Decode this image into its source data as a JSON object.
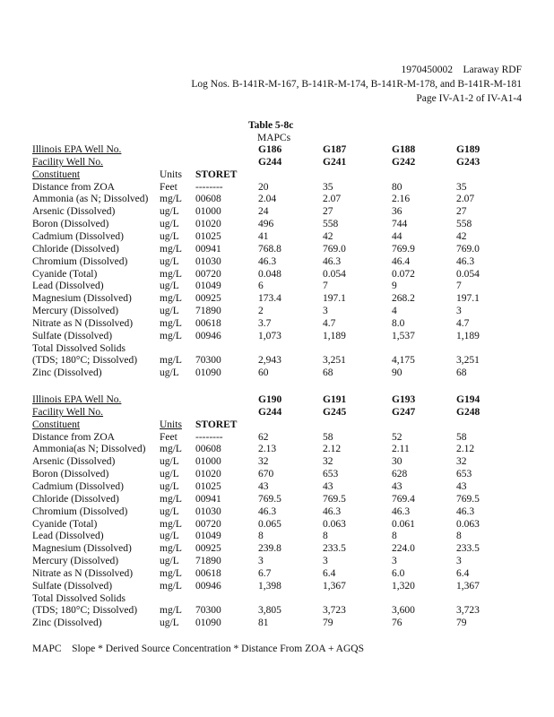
{
  "header": {
    "doc_id": "1970450002    Laraway RDF",
    "log_nos": "Log Nos. B-141R-M-167, B-141R-M-174, B-141R-M-178, and B-141R-M-181",
    "page": "Page IV-A1-2 of IV-A1-4"
  },
  "title": {
    "table": "Table 5-8c",
    "subtitle": "MAPCs"
  },
  "labels": {
    "epa_well": "Illinois EPA Well No.",
    "facility_well": "Facility Well No.",
    "constituent": "Constituent",
    "units": "Units",
    "storet": "STORET"
  },
  "tables": [
    {
      "epa_wells": [
        "G186",
        "G187",
        "G188",
        "G189"
      ],
      "facility_wells": [
        "G244",
        "G241",
        "G242",
        "G243"
      ],
      "rows": [
        {
          "name": "Distance from ZOA",
          "units": "Feet",
          "storet": "--------",
          "values": [
            "20",
            "35",
            "80",
            "35"
          ]
        },
        {
          "name": "Ammonia (as N; Dissolved)",
          "units": "mg/L",
          "storet": "00608",
          "values": [
            "2.04",
            "2.07",
            "2.16",
            "2.07"
          ]
        },
        {
          "name": "Arsenic (Dissolved)",
          "units": "ug/L",
          "storet": "01000",
          "values": [
            "24",
            "27",
            "36",
            "27"
          ]
        },
        {
          "name": "Boron (Dissolved)",
          "units": "ug/L",
          "storet": "01020",
          "values": [
            "496",
            "558",
            "744",
            "558"
          ]
        },
        {
          "name": "Cadmium (Dissolved)",
          "units": "ug/L",
          "storet": "01025",
          "values": [
            "41",
            "42",
            "44",
            "42"
          ]
        },
        {
          "name": "Chloride (Dissolved)",
          "units": "mg/L",
          "storet": "00941",
          "values": [
            "768.8",
            "769.0",
            "769.9",
            "769.0"
          ]
        },
        {
          "name": "Chromium (Dissolved)",
          "units": "ug/L",
          "storet": "01030",
          "values": [
            "46.3",
            "46.3",
            "46.4",
            "46.3"
          ]
        },
        {
          "name": "Cyanide (Total)",
          "units": "mg/L",
          "storet": "00720",
          "values": [
            "0.048",
            "0.054",
            "0.072",
            "0.054"
          ]
        },
        {
          "name": "Lead (Dissolved)",
          "units": "ug/L",
          "storet": "01049",
          "values": [
            "6",
            "7",
            "9",
            "7"
          ]
        },
        {
          "name": "Magnesium (Dissolved)",
          "units": "mg/L",
          "storet": "00925",
          "values": [
            "173.4",
            "197.1",
            "268.2",
            "197.1"
          ]
        },
        {
          "name": "Mercury (Dissolved)",
          "units": "ug/L",
          "storet": "71890",
          "values": [
            "2",
            "3",
            "4",
            "3"
          ]
        },
        {
          "name": "Nitrate as N (Dissolved)",
          "units": "mg/L",
          "storet": "00618",
          "values": [
            "3.7",
            "4.7",
            "8.0",
            "4.7"
          ]
        },
        {
          "name": "Sulfate (Dissolved)",
          "units": "mg/L",
          "storet": "00946",
          "values": [
            "1,073",
            "1,189",
            "1,537",
            "1,189"
          ]
        },
        {
          "name": "Total Dissolved Solids",
          "units": "",
          "storet": "",
          "values": [
            "",
            "",
            "",
            ""
          ]
        },
        {
          "name": "(TDS; 180°C; Dissolved)",
          "units": "mg/L",
          "storet": "70300",
          "values": [
            "2,943",
            "3,251",
            "4,175",
            "3,251"
          ]
        },
        {
          "name": "Zinc (Dissolved)",
          "units": "ug/L",
          "storet": "01090",
          "values": [
            "60",
            "68",
            "90",
            "68"
          ]
        }
      ]
    },
    {
      "epa_wells": [
        "G190",
        "G191",
        "G193",
        "G194"
      ],
      "facility_wells": [
        "G244",
        "G245",
        "G247",
        "G248"
      ],
      "rows": [
        {
          "name": "Distance from ZOA",
          "units": "Feet",
          "storet": "--------",
          "values": [
            "62",
            "58",
            "52",
            "58"
          ]
        },
        {
          "name": "Ammonia(as N; Dissolved)",
          "units": "mg/L",
          "storet": "00608",
          "values": [
            "2.13",
            "2.12",
            "2.11",
            "2.12"
          ]
        },
        {
          "name": "Arsenic  (Dissolved)",
          "units": "ug/L",
          "storet": "01000",
          "values": [
            "32",
            "32",
            "30",
            "32"
          ]
        },
        {
          "name": "Boron (Dissolved)",
          "units": "ug/L",
          "storet": "01020",
          "values": [
            "670",
            "653",
            "628",
            "653"
          ]
        },
        {
          "name": "Cadmium (Dissolved)",
          "units": "ug/L",
          "storet": "01025",
          "values": [
            "43",
            "43",
            "43",
            "43"
          ]
        },
        {
          "name": "Chloride (Dissolved)",
          "units": "mg/L",
          "storet": "00941",
          "values": [
            "769.5",
            "769.5",
            "769.4",
            "769.5"
          ]
        },
        {
          "name": "Chromium (Dissolved)",
          "units": "ug/L",
          "storet": "01030",
          "values": [
            "46.3",
            "46.3",
            "46.3",
            "46.3"
          ]
        },
        {
          "name": "Cyanide (Total)",
          "units": "mg/L",
          "storet": "00720",
          "values": [
            "0.065",
            "0.063",
            "0.061",
            "0.063"
          ]
        },
        {
          "name": "Lead (Dissolved)",
          "units": "ug/L",
          "storet": "01049",
          "values": [
            "8",
            "8",
            "8",
            "8"
          ]
        },
        {
          "name": "Magnesium (Dissolved)",
          "units": "mg/L",
          "storet": "00925",
          "values": [
            "239.8",
            "233.5",
            "224.0",
            "233.5"
          ]
        },
        {
          "name": "Mercury (Dissolved)",
          "units": "ug/L",
          "storet": "71890",
          "values": [
            "3",
            "3",
            "3",
            "3"
          ]
        },
        {
          "name": "Nitrate as N (Dissolved)",
          "units": "mg/L",
          "storet": "00618",
          "values": [
            "6.7",
            "6.4",
            "6.0",
            "6.4"
          ]
        },
        {
          "name": "Sulfate (Dissolved)",
          "units": "mg/L",
          "storet": "00946",
          "values": [
            "1,398",
            "1,367",
            "1,320",
            "1,367"
          ]
        },
        {
          "name": "Total Dissolved Solids",
          "units": "",
          "storet": "",
          "values": [
            "",
            "",
            "",
            ""
          ]
        },
        {
          "name": "(TDS; 180°C; Dissolved)",
          "units": "mg/L",
          "storet": "70300",
          "values": [
            "3,805",
            "3,723",
            "3,600",
            "3,723"
          ]
        },
        {
          "name": "Zinc (Dissolved)",
          "units": "ug/L",
          "storet": "01090",
          "values": [
            "81",
            "79",
            "76",
            "79"
          ]
        }
      ]
    }
  ],
  "footer": "MAPC    Slope * Derived Source Concentration * Distance From ZOA + AGQS"
}
